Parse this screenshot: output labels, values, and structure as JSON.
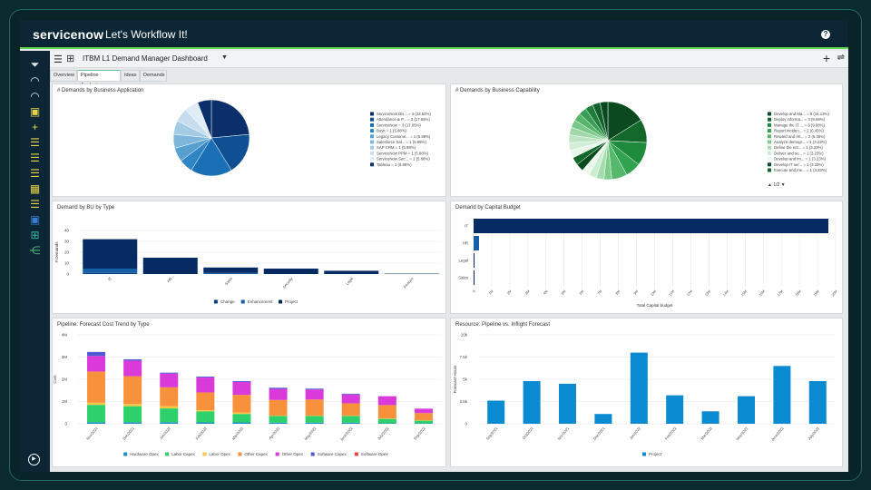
{
  "header": {
    "brand": "servicenow",
    "tagline": "Let's Workflow It!",
    "help_icon": "question-circle-icon"
  },
  "toolbar": {
    "title": "ITBM L1 Demand Manager Dashboard",
    "menu_icon": "hamburger-icon",
    "grid_icon": "grid-icon",
    "add_icon": "plus-icon",
    "filter_icon": "sliders-icon"
  },
  "tabs": [
    {
      "label": "Overview"
    },
    {
      "label": "Pipeline Analysis",
      "active": true
    },
    {
      "label": "Ideas"
    },
    {
      "label": "Demands"
    }
  ],
  "sidebar": {
    "icons": [
      "filter-icon",
      "gauge-icon",
      "gauge-icon",
      "save-icon",
      "plus-icon",
      "list-icon",
      "list-icon",
      "list-icon",
      "calendar-icon",
      "list-icon",
      "save-icon",
      "grid-icon",
      "hierarchy-icon"
    ],
    "bottom_icon": "play-icon"
  },
  "panels": {
    "p1": "# Demands by Business Application",
    "p2": "# Demands by Business Capability",
    "p3": "Demand by BU by Type",
    "p4": "Demand by Capital Budget",
    "p5": "Pipeline: Forecast Cost Trend by Type",
    "p6": "Resource: Pipeline vs. Inflight Forecast"
  },
  "chart_data": [
    {
      "type": "pie",
      "title": "# Demands by Business Application",
      "labels": [
        "ServiceNow Dis... = 4 (23.53%)",
        "Attendance & P... = 3 (17.65%)",
        "ServiceNow = 3 (17.65%)",
        "Buyit = 1 (5.88%)",
        "Legacy Custome... = 1 (5.88%)",
        "Salesforce Sal... = 1 (5.88%)",
        "SAP CRM = 1 (5.88%)",
        "ServiceNow PPM = 1 (5.88%)",
        "ServiceNow Sec... = 1 (5.88%)",
        "Tableau = 1 (5.88%)"
      ],
      "values": [
        4,
        3,
        3,
        1,
        1,
        1,
        1,
        1,
        1,
        1
      ],
      "colors": [
        "#0a2f6b",
        "#0f4f94",
        "#1a6fb5",
        "#2f86c2",
        "#569fcf",
        "#7cb6da",
        "#a4cbe6",
        "#c6ddef",
        "#e0ecf6",
        "#0a2f6b"
      ],
      "legend": "right"
    },
    {
      "type": "pie",
      "title": "# Demands by Business Capability",
      "labels": [
        "Develop and Ma... = 5 (16.13%)",
        "Deploy informa... = 3 (9.68%)",
        "Manage the IT ... = 3 (9.68%)",
        "Report inciden... = 2 (6.45%)",
        "Reward and ret... = 2 (6.45%)",
        "Analyze demogr... = 1 (3.23%)",
        "Define the ent... = 1 (3.23%)",
        "Deliver and su... = 1 (3.23%)",
        "Develop and im... = 1 (3.23%)",
        "Develop IT ser... = 1 (3.23%)",
        "Execute and me... = 1 (3.23%)"
      ],
      "values": [
        5,
        3,
        3,
        2,
        2,
        1,
        1,
        1,
        1,
        1,
        1
      ],
      "other_values": [
        10
      ],
      "colors": [
        "#0b4a1f",
        "#13682c",
        "#1d8a3c",
        "#31a24f",
        "#55b86b",
        "#7fcc8c",
        "#a6ddae",
        "#cdeed2",
        "#eef8ef",
        "#0b4a1f",
        "#13682c"
      ],
      "other_colors": [
        "#e9f6eb",
        "#d3eed7",
        "#bde4c3",
        "#a0d8a9",
        "#7cc78a",
        "#58b56c",
        "#3a9f55",
        "#1e7f3c",
        "#12612c",
        "#0a4820"
      ],
      "legend": "right",
      "page": "1/2"
    },
    {
      "type": "bar",
      "stacked": true,
      "title": "Demand by BU by Type",
      "ylabel": "# Demands",
      "ylim": [
        0,
        40
      ],
      "yticks": [
        "0",
        "10",
        "20",
        "30",
        "40"
      ],
      "categories": [
        "IT",
        "HR",
        "Sales",
        "Security",
        "Legal",
        "Finance"
      ],
      "series": [
        {
          "name": "Change",
          "values": [
            1,
            0,
            0,
            0,
            0,
            0
          ],
          "color": "#0b3d7a"
        },
        {
          "name": "Enhancement",
          "values": [
            4,
            0,
            1,
            0,
            0,
            0
          ],
          "color": "#155fa6"
        },
        {
          "name": "Project",
          "values": [
            27,
            15,
            5,
            5,
            3,
            0.4
          ],
          "color": "#062a62"
        }
      ],
      "legend": "bottom"
    },
    {
      "type": "bar",
      "orientation": "horizontal",
      "title": "Demand by Capital Budget",
      "xlabel": "Total Capital budget",
      "xlim": [
        0,
        20
      ],
      "xticks": [
        "0",
        "1M",
        "2M",
        "3M",
        "4M",
        "5M",
        "6M",
        "7M",
        "8M",
        "9M",
        "10M",
        "11M",
        "12M",
        "13M",
        "14M",
        "15M",
        "16M",
        "17M",
        "18M",
        "19M",
        "20M"
      ],
      "categories": [
        "IT",
        "HR",
        "Legal",
        "Sales"
      ],
      "values": [
        19.6,
        0.3,
        0.05,
        0.05
      ],
      "color": "#062a62"
    },
    {
      "type": "bar",
      "stacked": true,
      "title": "Pipeline: Forecast Cost Trend by Type",
      "ylabel": "Cost",
      "ylim": [
        0,
        4
      ],
      "yticks": [
        "0",
        "1M",
        "2M",
        "3M",
        "4M"
      ],
      "categories": [
        "Nov/2021",
        "Dec/2021",
        "Jan/2022",
        "Feb/2022",
        "Mar/2022",
        "Apr/2022",
        "May/2022",
        "June/2022",
        "July/2022",
        "Sep/2022"
      ],
      "series": [
        {
          "name": "Hardware Opex",
          "color": "#1a8bc6",
          "values": [
            0.07,
            0.07,
            0.07,
            0.06,
            0.06,
            0.05,
            0.05,
            0.05,
            0.02,
            0.02
          ]
        },
        {
          "name": "Labor Capex",
          "color": "#2ed06c",
          "values": [
            0.78,
            0.72,
            0.62,
            0.5,
            0.38,
            0.3,
            0.3,
            0.3,
            0.2,
            0.12
          ]
        },
        {
          "name": "Labor Opex",
          "color": "#f5c842",
          "values": [
            0.1,
            0.1,
            0.1,
            0.05,
            0.06,
            0.02,
            0.02,
            0.02,
            0.02,
            0.02
          ]
        },
        {
          "name": "Other Capex",
          "color": "#f7913b",
          "values": [
            1.4,
            1.25,
            0.85,
            0.8,
            0.8,
            0.7,
            0.72,
            0.55,
            0.6,
            0.32
          ]
        },
        {
          "name": "Other Opex",
          "color": "#d93ad9",
          "values": [
            0.7,
            0.7,
            0.62,
            0.67,
            0.58,
            0.5,
            0.45,
            0.4,
            0.4,
            0.2
          ]
        },
        {
          "name": "Software Capex",
          "color": "#4f5bd5",
          "values": [
            0.18,
            0.06,
            0.04,
            0.04,
            0.04,
            0.05,
            0.04,
            0.03,
            0,
            0
          ]
        },
        {
          "name": "Software Opex",
          "color": "#f04444",
          "values": [
            0,
            0,
            0,
            0,
            0,
            0,
            0,
            0,
            0,
            0
          ]
        }
      ],
      "legend": "bottom"
    },
    {
      "type": "bar",
      "title": "Resource: Pipeline vs. Inflight Forecast",
      "ylabel": "Forecast Hours",
      "ylim": [
        0,
        10000
      ],
      "yticks": [
        "0",
        "2.5k",
        "5k",
        "7.5k",
        "10k"
      ],
      "categories": [
        "Sep/2021",
        "Oct/2021",
        "Nov/2021",
        "Dec/2021",
        "Jan/2022",
        "Feb/2022",
        "Mar/2022",
        "May/2022",
        "June/2022",
        "July/2022"
      ],
      "series": [
        {
          "name": "Project",
          "color": "#0a8ad0",
          "values": [
            2600,
            4800,
            4500,
            1100,
            8000,
            3200,
            1400,
            3100,
            6500,
            4800
          ]
        }
      ],
      "legend": "bottom"
    }
  ]
}
